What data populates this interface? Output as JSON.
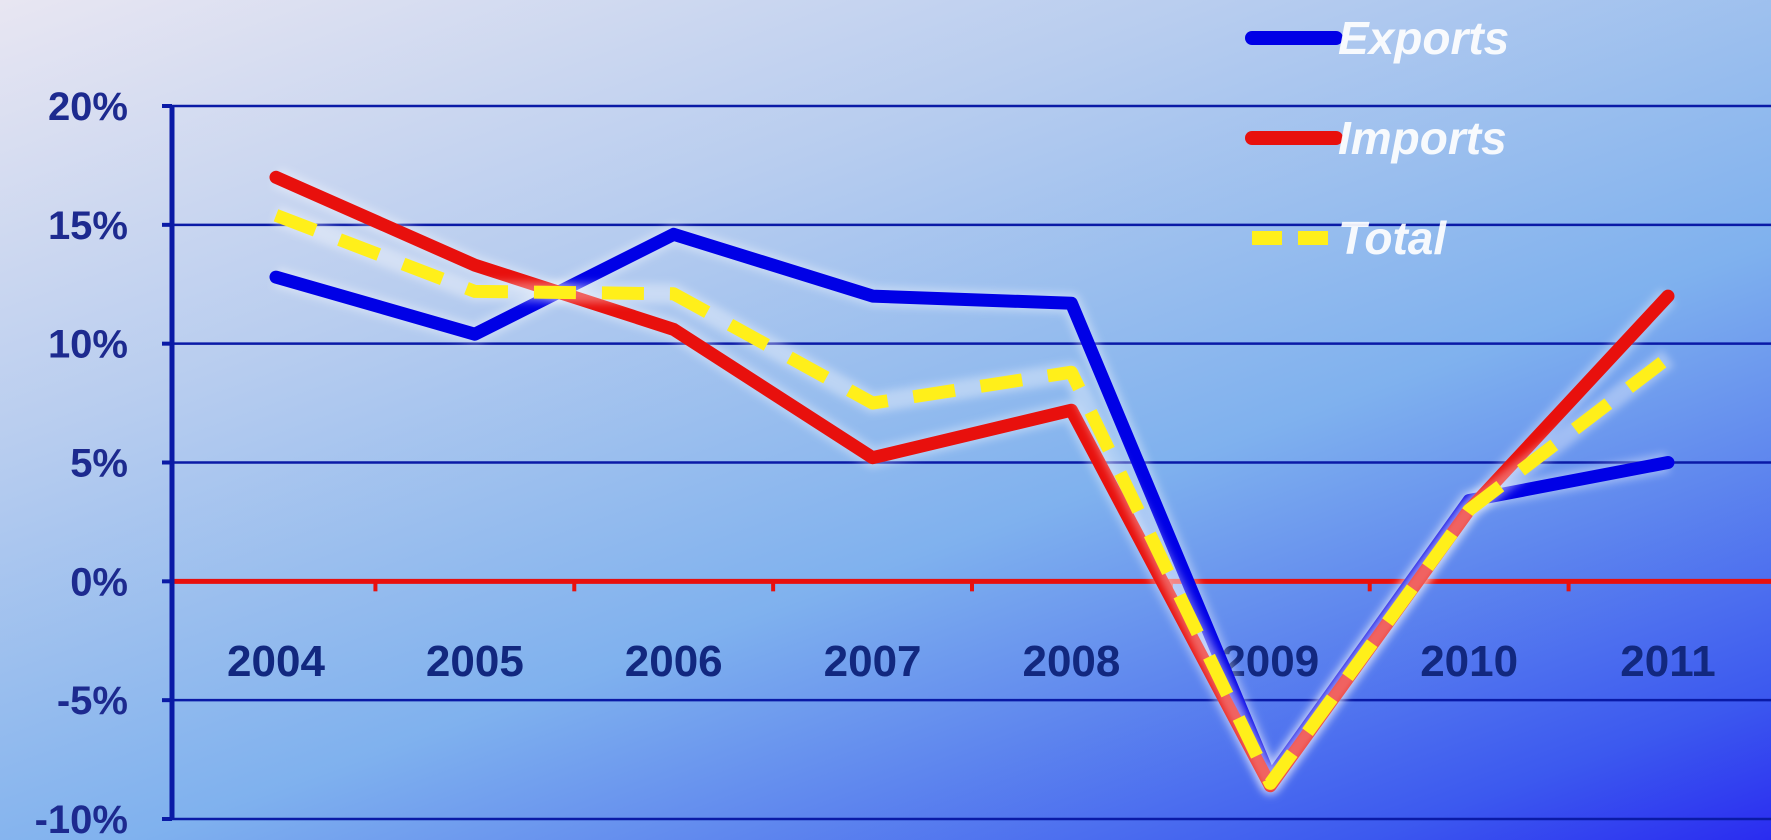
{
  "chart_data": {
    "type": "line",
    "title": "",
    "xlabel": "",
    "ylabel": "",
    "categories": [
      "2004",
      "2005",
      "2006",
      "2007",
      "2008",
      "2009",
      "2010",
      "2011"
    ],
    "y_ticks": [
      "20%",
      "15%",
      "10%",
      "5%",
      "0%",
      "-5%",
      "-10%"
    ],
    "y_tick_values": [
      20,
      15,
      10,
      5,
      0,
      -5,
      -10
    ],
    "ylim": [
      -10,
      20
    ],
    "grid": true,
    "legend_position": "top-right",
    "series": [
      {
        "name": "Exports",
        "color": "#0000e6",
        "dashed": false,
        "values": [
          12.8,
          10.4,
          14.6,
          12.0,
          11.7,
          -8.3,
          3.4,
          5.0
        ]
      },
      {
        "name": "Imports",
        "color": "#e8100d",
        "dashed": false,
        "values": [
          17.0,
          13.3,
          10.6,
          5.2,
          7.2,
          -8.6,
          3.0,
          12.0
        ]
      },
      {
        "name": "Total",
        "color": "#ffef1a",
        "dashed": true,
        "values": [
          15.4,
          12.2,
          12.1,
          7.5,
          8.8,
          -8.5,
          3.0,
          9.4
        ]
      }
    ],
    "zero_line_color": "#e8100d",
    "grid_color": "#0a1aa6"
  }
}
